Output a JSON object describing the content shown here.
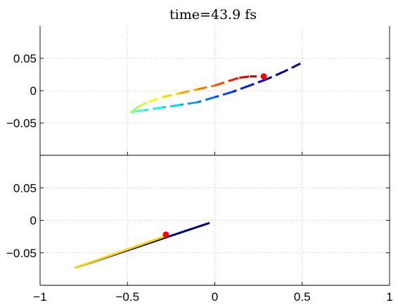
{
  "chart_data": [
    {
      "type": "line",
      "panel": "top",
      "title": "time=43.9 fs",
      "xlim": [
        -1,
        1
      ],
      "ylim": [
        -0.1,
        0.1
      ],
      "yticks": [
        0.05,
        0,
        -0.05
      ],
      "ytick_labels": [
        "0.05",
        "0",
        "−0.05"
      ],
      "xticks": [
        -1,
        -0.5,
        0,
        0.5,
        1
      ],
      "xtick_labels": [],
      "grid": true,
      "line_style": "dashed",
      "colormap": "jet",
      "series": [
        {
          "x": [
            0.49,
            0.4,
            0.3,
            0.2,
            0.1,
            0.0,
            -0.1,
            -0.2,
            -0.3,
            -0.4,
            -0.45,
            -0.48,
            -0.44,
            -0.38,
            -0.3,
            -0.2,
            -0.1,
            0.0,
            0.08,
            0.14,
            0.2,
            0.24
          ],
          "y": [
            0.042,
            0.03,
            0.018,
            0.008,
            -0.002,
            -0.01,
            -0.018,
            -0.022,
            -0.026,
            -0.03,
            -0.032,
            -0.034,
            -0.025,
            -0.017,
            -0.01,
            -0.004,
            0.002,
            0.008,
            0.015,
            0.02,
            0.022,
            0.022
          ]
        }
      ],
      "marker": {
        "x": 0.28,
        "y": 0.022,
        "color": "#ff0000"
      }
    },
    {
      "type": "line",
      "panel": "bottom",
      "xlim": [
        -1,
        1
      ],
      "ylim": [
        -0.1,
        0.1
      ],
      "yticks": [
        0.05,
        0,
        -0.05
      ],
      "ytick_labels": [
        "0.05",
        "0",
        "−0.05"
      ],
      "xticks": [
        -1,
        -0.5,
        0,
        0.5,
        1
      ],
      "xtick_labels": [
        "−1",
        "−0.5",
        "0",
        "0.5",
        "1"
      ],
      "grid": true,
      "line_style": "solid",
      "colormap": "jet",
      "series": [
        {
          "x": [
            -0.03,
            -0.8
          ],
          "y": [
            -0.004,
            -0.073
          ]
        },
        {
          "x": [
            -0.8,
            -0.28
          ],
          "y": [
            -0.073,
            -0.024
          ]
        }
      ],
      "marker": {
        "x": -0.28,
        "y": -0.022,
        "color": "#ff0000"
      }
    }
  ]
}
